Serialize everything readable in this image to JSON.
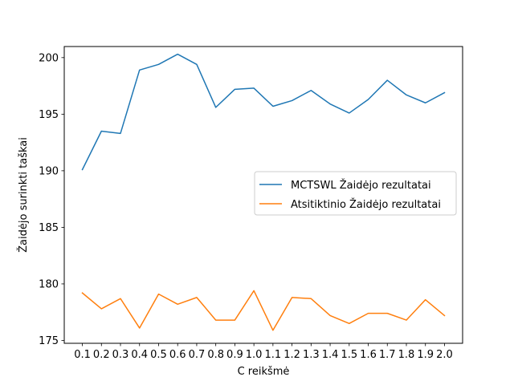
{
  "chart_data": {
    "type": "line",
    "title": "",
    "xlabel": "C reikšmė",
    "ylabel": "Žaidėjo surinkti taškai",
    "x": [
      0.1,
      0.2,
      0.3,
      0.4,
      0.5,
      0.6,
      0.7,
      0.8,
      0.9,
      1.0,
      1.1,
      1.2,
      1.3,
      1.4,
      1.5,
      1.6,
      1.7,
      1.8,
      1.9,
      2.0
    ],
    "x_tick_labels": [
      "0.1",
      "0.2",
      "0.3",
      "0.4",
      "0.5",
      "0.6",
      "0.7",
      "0.8",
      "0.9",
      "1.0",
      "1.1",
      "1.2",
      "1.3",
      "1.4",
      "1.5",
      "1.6",
      "1.7",
      "1.8",
      "1.9",
      "2.0"
    ],
    "y_ticks": [
      175,
      180,
      185,
      190,
      195,
      200
    ],
    "xlim": [
      0.005,
      2.095
    ],
    "ylim": [
      174.75,
      200.98
    ],
    "grid": false,
    "legend_position": "center-right",
    "series": [
      {
        "name": "MCTSWL Žaidėjo rezultatai",
        "color": "#1f77b4",
        "values": [
          190.1,
          193.5,
          193.3,
          198.9,
          199.4,
          200.3,
          199.4,
          195.6,
          197.2,
          197.3,
          195.7,
          196.2,
          197.1,
          195.9,
          195.1,
          196.3,
          198.0,
          196.7,
          196.0,
          196.9
        ]
      },
      {
        "name": "Atsitiktinio Žaidėjo rezultatai",
        "color": "#ff7f0e",
        "values": [
          179.2,
          177.8,
          178.7,
          176.1,
          179.1,
          178.2,
          178.8,
          176.8,
          176.8,
          179.4,
          175.9,
          178.8,
          178.7,
          177.2,
          176.5,
          177.4,
          177.4,
          176.8,
          178.6,
          177.2
        ]
      }
    ]
  }
}
